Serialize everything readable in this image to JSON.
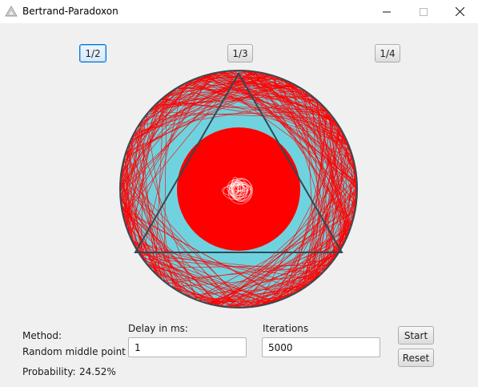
{
  "window": {
    "title": "Bertrand-Paradoxon",
    "app_icon": "triangle-app-icon",
    "controls": [
      "minimize-icon",
      "maximize-icon",
      "close-icon"
    ]
  },
  "ratio_buttons": [
    {
      "label": "1/2",
      "selected": true
    },
    {
      "label": "1/3",
      "selected": false
    },
    {
      "label": "1/4",
      "selected": false
    }
  ],
  "colors": {
    "circle_fill": "#6fd3df",
    "circle_stroke": "#3a4a52",
    "triangle_stroke": "#2f4a55",
    "chord": "#ff0000",
    "accent": "#0078d7"
  },
  "method": {
    "label": "Method:",
    "value": "Random middle point"
  },
  "probability": {
    "label": "Probability:",
    "value": "24.52%"
  },
  "delay": {
    "label": "Delay in ms:",
    "value": "1"
  },
  "iterations": {
    "label": "Iterations",
    "value": "5000"
  },
  "actions": {
    "start": "Start",
    "reset": "Reset"
  }
}
